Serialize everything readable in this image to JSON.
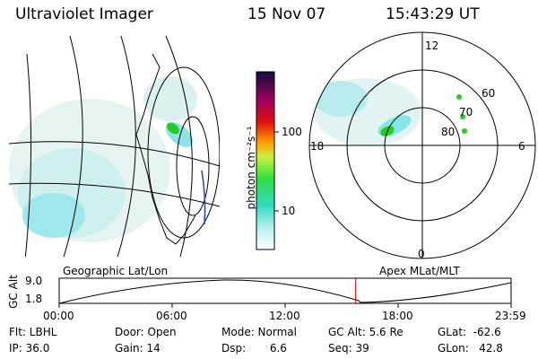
{
  "header": {
    "instrument": "Ultraviolet Imager",
    "date": "15 Nov 07",
    "time": "15:43:29 UT"
  },
  "colorbar": {
    "label": "photon cm⁻²s⁻¹",
    "ticks": [
      "100",
      "10"
    ]
  },
  "polar_plot": {
    "mlt_labels": [
      "12",
      "18",
      "6",
      "0"
    ],
    "mlat_labels": [
      "60",
      "70",
      "80"
    ]
  },
  "panel_labels": {
    "left": "Geographic Lat/Lon",
    "right": "Apex MLat/MLT"
  },
  "altitude_plot": {
    "ylabel": "GC Alt",
    "yticks": [
      "9.0",
      "1.8"
    ],
    "xticks": [
      "00:00",
      "06:00",
      "12:00",
      "18:00",
      "23:59"
    ],
    "current_time_fraction": 0.656
  },
  "footer": {
    "filter": "Flt: LBHL",
    "ip": "IP: 36.0",
    "door": "Door: Open",
    "gain": "Gain: 14",
    "mode": "Mode: Normal",
    "dsp": "Dsp:       6.6",
    "gc_alt": "GC Alt: 5.6 Re",
    "seq": "Seq: 39",
    "glat": "GLat:  -62.6",
    "glon": "GLon:   42.8"
  },
  "colors": {
    "emission": "#7ee8e8",
    "bright": "#22cc22",
    "marker": "#dd0000"
  }
}
